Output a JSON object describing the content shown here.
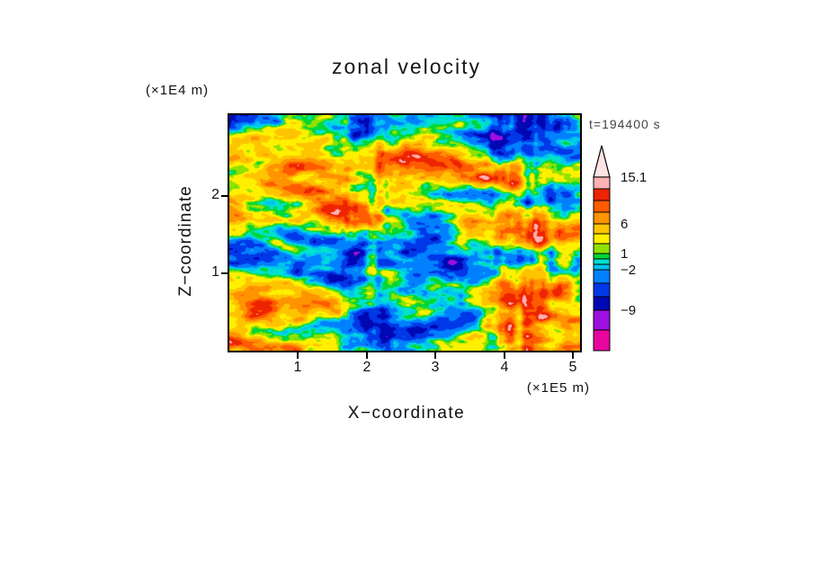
{
  "title": "zonal velocity",
  "annotations": {
    "time_label": "t=194400 s"
  },
  "axes": {
    "x": {
      "label": "X−coordinate",
      "unit_label": "(×1E5 m)",
      "ticks": [
        1,
        2,
        3,
        4,
        5
      ],
      "range": [
        0,
        5.1
      ]
    },
    "y": {
      "label": "Z−coordinate",
      "unit_label": "(×1E4 m)",
      "ticks": [
        1,
        2
      ],
      "range": [
        0,
        3.05
      ]
    }
  },
  "chart_data": {
    "type": "heatmap",
    "title": "zonal velocity",
    "xlabel": "X−coordinate",
    "x_unit": "(×1E5 m)",
    "ylabel": "Z−coordinate",
    "y_unit": "(×1E4 m)",
    "x_range": [
      0,
      5.1
    ],
    "y_range": [
      0,
      3.05
    ],
    "x_ticks": [
      1,
      2,
      3,
      4,
      5
    ],
    "y_ticks": [
      1,
      2
    ],
    "time_label": "t=194400 s",
    "grid": false,
    "legend_position": "right-colorbar",
    "colorbar": {
      "boundaries": [
        -12,
        -9,
        -6,
        -4,
        -2,
        -1,
        0,
        1,
        2,
        4,
        6,
        8,
        10,
        12,
        15.1
      ],
      "colors": [
        "#E7059E",
        "#9C10E0",
        "#0008B4",
        "#0038E8",
        "#0080FF",
        "#00C4F0",
        "#00E2CE",
        "#00D736",
        "#8FE100",
        "#FFF000",
        "#FFC400",
        "#FF9300",
        "#FF5B00",
        "#EE2400",
        "#FFB2B2",
        "#FFE4E4"
      ],
      "ticks": [
        {
          "value": 15.1,
          "label": "15.1"
        },
        {
          "value": 6,
          "label": "6"
        },
        {
          "value": 1,
          "label": "1"
        },
        {
          "value": -2,
          "label": "−2"
        },
        {
          "value": -9,
          "label": "−9"
        }
      ],
      "max_label": "15.1"
    },
    "field": {
      "description": "Turbulent 2D zonal-velocity field shown as filled discrete color bands; values span roughly −12 to 15.1 with dominant bands between −2 and 8, dark blue negative streaks near the top, orange positive bands in the middle and lower regions, and vertical plume-like striations near x≈2 and x≈4.3 (×1E5 m).",
      "value_min_shown": -12,
      "value_max_shown": 15.1
    }
  }
}
